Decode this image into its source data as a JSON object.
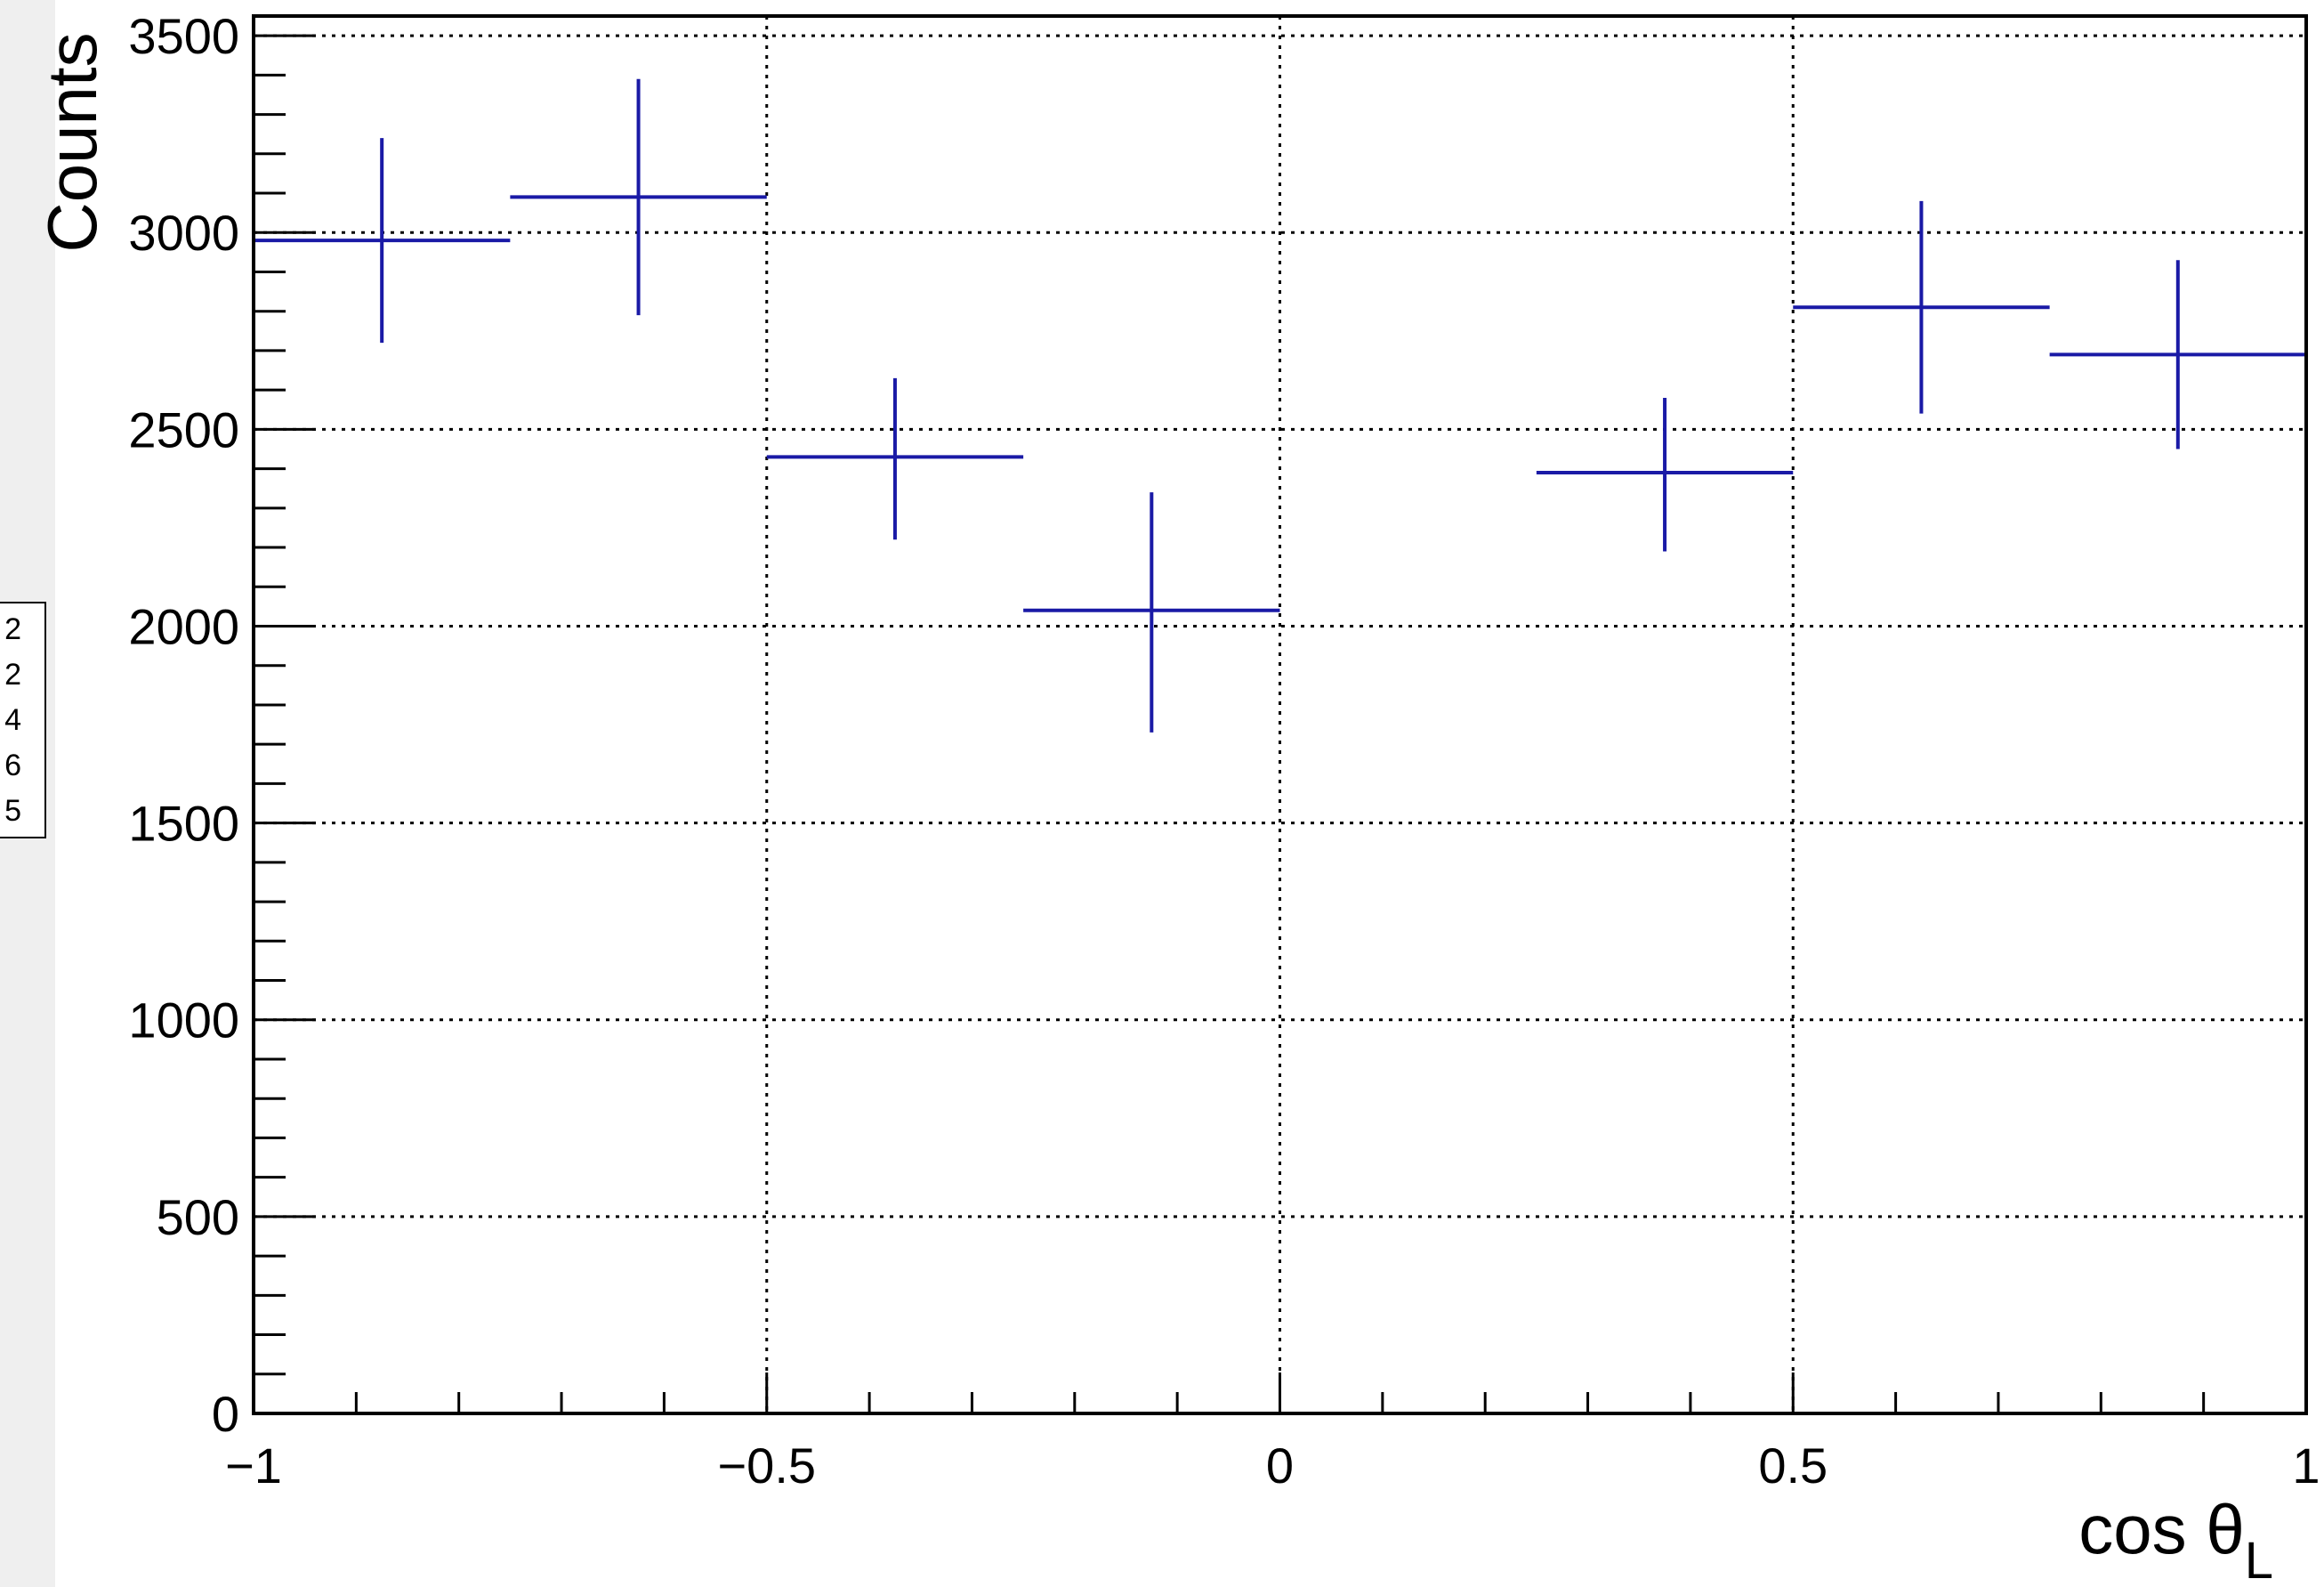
{
  "stats_box": {
    "lines": [
      "2",
      "2",
      "4",
      "6",
      "5"
    ]
  },
  "chart_data": {
    "type": "scatter",
    "title": "",
    "xlabel": "cos θ",
    "xlabel_subscript": "L",
    "ylabel": "Counts",
    "xlim": [
      -1,
      1
    ],
    "ylim": [
      0,
      3550
    ],
    "grid": true,
    "x_ticks": [
      -1,
      -0.5,
      0,
      0.5,
      1
    ],
    "x_tick_labels": [
      "−1",
      "−0.5",
      "0",
      "0.5",
      "1"
    ],
    "y_ticks": [
      0,
      500,
      1000,
      1500,
      2000,
      2500,
      3000,
      3500
    ],
    "y_tick_labels": [
      "0",
      "500",
      "1000",
      "1500",
      "2000",
      "2500",
      "3000",
      "3500"
    ],
    "marker_color": "#1a1aa6",
    "series": [
      {
        "points": [
          {
            "x_low": -1.0,
            "x_high": -0.75,
            "y": 2980,
            "y_low": 2720,
            "y_high": 3240
          },
          {
            "x_low": -0.75,
            "x_high": -0.5,
            "y": 3090,
            "y_low": 2790,
            "y_high": 3390
          },
          {
            "x_low": -0.5,
            "x_high": -0.25,
            "y": 2430,
            "y_low": 2220,
            "y_high": 2630
          },
          {
            "x_low": -0.25,
            "x_high": 0.0,
            "y": 2040,
            "y_low": 1730,
            "y_high": 2340
          },
          {
            "x_low": 0.25,
            "x_high": 0.5,
            "y": 2390,
            "y_low": 2190,
            "y_high": 2580
          },
          {
            "x_low": 0.5,
            "x_high": 0.75,
            "y": 2810,
            "y_low": 2540,
            "y_high": 3080
          },
          {
            "x_low": 0.75,
            "x_high": 1.0,
            "y": 2690,
            "y_low": 2450,
            "y_high": 2930
          }
        ]
      }
    ]
  }
}
